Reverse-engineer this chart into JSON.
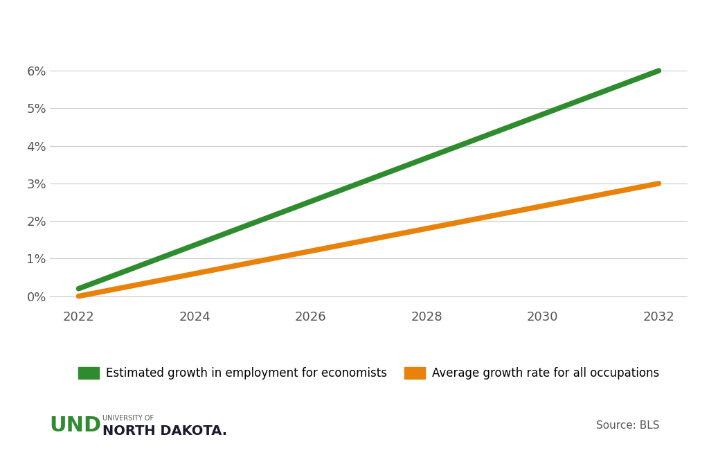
{
  "years": [
    2022,
    2032
  ],
  "green_values": [
    0.2,
    6.0
  ],
  "orange_values": [
    0.0,
    3.0
  ],
  "green_color": "#2e8b2e",
  "orange_color": "#e8820a",
  "background_color": "#ffffff",
  "ylim": [
    -0.3,
    7.0
  ],
  "xlim": [
    2021.5,
    2032.5
  ],
  "yticks": [
    0,
    1,
    2,
    3,
    4,
    5,
    6
  ],
  "ytick_labels": [
    "0%",
    "1%",
    "2%",
    "3%",
    "4%",
    "5%",
    "6%"
  ],
  "xticks": [
    2022,
    2024,
    2026,
    2028,
    2030,
    2032
  ],
  "legend_green_label": "Estimated growth in employment for economists",
  "legend_orange_label": "Average growth rate for all occupations",
  "source_text": "Source: BLS",
  "line_width": 5.5
}
